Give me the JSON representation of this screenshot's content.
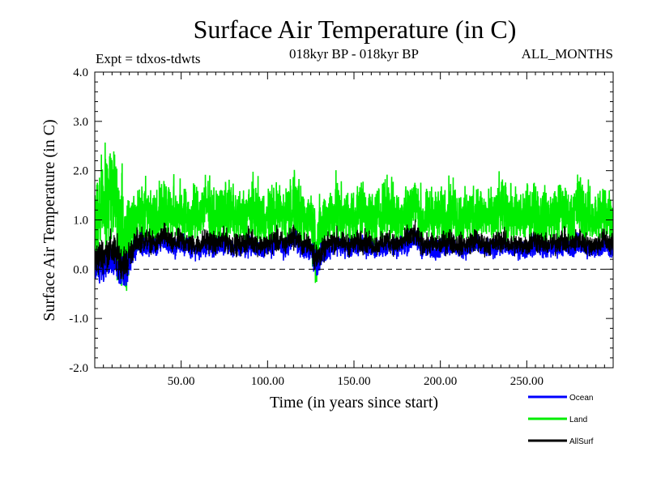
{
  "chart_data": {
    "type": "line",
    "title": "Surface Air Temperature (in C)",
    "subtitle_left": "Expt = tdxos-tdwts",
    "subtitle_center": "018kyr BP - 018kyr BP",
    "subtitle_right": "ALL_MONTHS",
    "xlabel": "Time (in years since start)",
    "ylabel": "Surface Air Temperature (in C)",
    "xlim": [
      0,
      300
    ],
    "ylim": [
      -2.0,
      4.0
    ],
    "x_ticks": [
      50,
      100,
      150,
      200,
      250
    ],
    "x_tick_labels": [
      "50.00",
      "100.00",
      "150.00",
      "200.00",
      "250.00"
    ],
    "y_ticks": [
      -2.0,
      -1.0,
      0.0,
      1.0,
      2.0,
      3.0,
      4.0
    ],
    "y_tick_labels": [
      "-2.0",
      "-1.0",
      "0.0",
      "1.0",
      "2.0",
      "3.0",
      "4.0"
    ],
    "zero_line": "dashed",
    "grid": false,
    "legend_position": "bottom-right",
    "series": [
      {
        "name": "Land",
        "color": "#00ee00",
        "x": [
          0,
          5,
          10,
          12,
          15,
          18,
          20,
          25,
          30,
          35,
          40,
          45,
          50,
          55,
          60,
          65,
          70,
          75,
          80,
          85,
          90,
          95,
          100,
          105,
          110,
          115,
          120,
          125,
          128,
          130,
          135,
          140,
          145,
          150,
          155,
          160,
          165,
          170,
          175,
          180,
          185,
          190,
          195,
          200,
          205,
          210,
          215,
          220,
          225,
          230,
          235,
          240,
          245,
          250,
          255,
          260,
          265,
          270,
          275,
          280,
          285,
          290,
          295,
          300
        ],
        "values": [
          0.9,
          1.3,
          1.6,
          1.4,
          0.9,
          0.5,
          0.8,
          1.1,
          1.2,
          1.0,
          1.3,
          1.1,
          1.2,
          1.0,
          1.1,
          1.3,
          1.0,
          1.2,
          1.1,
          1.0,
          1.2,
          1.1,
          1.0,
          1.2,
          1.1,
          1.3,
          1.0,
          1.1,
          0.5,
          0.7,
          1.1,
          1.2,
          1.0,
          1.1,
          1.2,
          1.0,
          1.1,
          1.3,
          1.0,
          1.2,
          1.3,
          1.0,
          1.1,
          1.0,
          1.2,
          1.1,
          1.0,
          1.2,
          1.1,
          1.0,
          1.2,
          1.1,
          1.0,
          1.1,
          1.2,
          1.0,
          1.1,
          1.2,
          1.0,
          1.3,
          1.1,
          1.0,
          1.2,
          1.1
        ],
        "amplitude": [
          1.4,
          1.5,
          1.6,
          1.7,
          1.8,
          1.7,
          1.2,
          1.0,
          0.9,
          0.8,
          0.9,
          0.8,
          0.9,
          0.8,
          0.8,
          0.9,
          0.8,
          0.9,
          0.8,
          0.8,
          0.9,
          0.8,
          0.8,
          0.9,
          0.8,
          1.0,
          0.8,
          0.8,
          1.2,
          1.0,
          0.8,
          0.9,
          0.8,
          0.8,
          0.9,
          0.8,
          0.8,
          0.9,
          0.8,
          0.9,
          0.9,
          0.8,
          0.8,
          0.8,
          0.9,
          0.8,
          0.8,
          0.9,
          0.8,
          0.8,
          0.9,
          0.8,
          0.8,
          0.8,
          0.9,
          0.8,
          0.8,
          0.9,
          0.8,
          1.0,
          0.8,
          0.8,
          0.9,
          0.8
        ]
      },
      {
        "name": "Ocean",
        "color": "#0000ff",
        "x": [
          0,
          5,
          10,
          12,
          15,
          18,
          20,
          25,
          30,
          35,
          40,
          45,
          50,
          55,
          60,
          65,
          70,
          75,
          80,
          85,
          90,
          95,
          100,
          105,
          110,
          115,
          120,
          125,
          128,
          130,
          135,
          140,
          145,
          150,
          155,
          160,
          165,
          170,
          175,
          180,
          185,
          190,
          195,
          200,
          205,
          210,
          215,
          220,
          225,
          230,
          235,
          240,
          245,
          250,
          255,
          260,
          265,
          270,
          275,
          280,
          285,
          290,
          295,
          300
        ],
        "values": [
          0.0,
          0.1,
          0.2,
          0.1,
          0.0,
          -0.1,
          0.2,
          0.5,
          0.5,
          0.4,
          0.6,
          0.4,
          0.5,
          0.4,
          0.4,
          0.5,
          0.4,
          0.5,
          0.4,
          0.4,
          0.5,
          0.4,
          0.4,
          0.5,
          0.4,
          0.6,
          0.4,
          0.4,
          0.1,
          0.2,
          0.4,
          0.5,
          0.4,
          0.4,
          0.5,
          0.4,
          0.4,
          0.5,
          0.4,
          0.5,
          0.6,
          0.4,
          0.4,
          0.4,
          0.5,
          0.4,
          0.4,
          0.5,
          0.4,
          0.4,
          0.5,
          0.4,
          0.4,
          0.4,
          0.5,
          0.4,
          0.4,
          0.5,
          0.4,
          0.5,
          0.4,
          0.4,
          0.5,
          0.4
        ],
        "amplitude": [
          0.45,
          0.45,
          0.5,
          0.5,
          0.5,
          0.45,
          0.35,
          0.3,
          0.3,
          0.25,
          0.3,
          0.25,
          0.3,
          0.25,
          0.25,
          0.3,
          0.25,
          0.3,
          0.25,
          0.25,
          0.3,
          0.25,
          0.25,
          0.3,
          0.25,
          0.3,
          0.25,
          0.25,
          0.45,
          0.35,
          0.25,
          0.3,
          0.25,
          0.25,
          0.3,
          0.25,
          0.25,
          0.3,
          0.25,
          0.3,
          0.3,
          0.25,
          0.25,
          0.25,
          0.3,
          0.25,
          0.25,
          0.3,
          0.25,
          0.25,
          0.3,
          0.25,
          0.25,
          0.25,
          0.3,
          0.25,
          0.25,
          0.3,
          0.25,
          0.3,
          0.25,
          0.25,
          0.3,
          0.25
        ]
      },
      {
        "name": "AllSurf",
        "color": "#000000",
        "x": [
          0,
          5,
          10,
          12,
          15,
          18,
          20,
          25,
          30,
          35,
          40,
          45,
          50,
          55,
          60,
          65,
          70,
          75,
          80,
          85,
          90,
          95,
          100,
          105,
          110,
          115,
          120,
          125,
          128,
          130,
          135,
          140,
          145,
          150,
          155,
          160,
          165,
          170,
          175,
          180,
          185,
          190,
          195,
          200,
          205,
          210,
          215,
          220,
          225,
          230,
          235,
          240,
          245,
          250,
          255,
          260,
          265,
          270,
          275,
          280,
          285,
          290,
          295,
          300
        ],
        "values": [
          0.2,
          0.3,
          0.4,
          0.3,
          0.2,
          0.1,
          0.3,
          0.6,
          0.6,
          0.5,
          0.7,
          0.5,
          0.6,
          0.5,
          0.5,
          0.6,
          0.5,
          0.6,
          0.5,
          0.5,
          0.6,
          0.5,
          0.5,
          0.6,
          0.5,
          0.7,
          0.5,
          0.5,
          0.2,
          0.3,
          0.5,
          0.6,
          0.5,
          0.5,
          0.6,
          0.5,
          0.5,
          0.6,
          0.5,
          0.6,
          0.7,
          0.5,
          0.5,
          0.5,
          0.6,
          0.5,
          0.5,
          0.6,
          0.5,
          0.5,
          0.6,
          0.5,
          0.5,
          0.5,
          0.6,
          0.5,
          0.5,
          0.6,
          0.5,
          0.6,
          0.5,
          0.5,
          0.6,
          0.5
        ],
        "amplitude": [
          0.5,
          0.5,
          0.55,
          0.55,
          0.55,
          0.5,
          0.4,
          0.35,
          0.35,
          0.3,
          0.35,
          0.3,
          0.35,
          0.3,
          0.3,
          0.35,
          0.3,
          0.35,
          0.3,
          0.3,
          0.35,
          0.3,
          0.3,
          0.35,
          0.3,
          0.35,
          0.3,
          0.3,
          0.5,
          0.4,
          0.3,
          0.35,
          0.3,
          0.3,
          0.35,
          0.3,
          0.3,
          0.35,
          0.3,
          0.35,
          0.35,
          0.3,
          0.3,
          0.3,
          0.35,
          0.3,
          0.3,
          0.35,
          0.3,
          0.3,
          0.35,
          0.3,
          0.3,
          0.3,
          0.35,
          0.3,
          0.3,
          0.35,
          0.3,
          0.35,
          0.3,
          0.3,
          0.35,
          0.3
        ]
      }
    ],
    "legend": [
      {
        "label": "Ocean",
        "color": "#0000ff"
      },
      {
        "label": "Land",
        "color": "#00ee00"
      },
      {
        "label": "AllSurf",
        "color": "#000000"
      }
    ]
  }
}
